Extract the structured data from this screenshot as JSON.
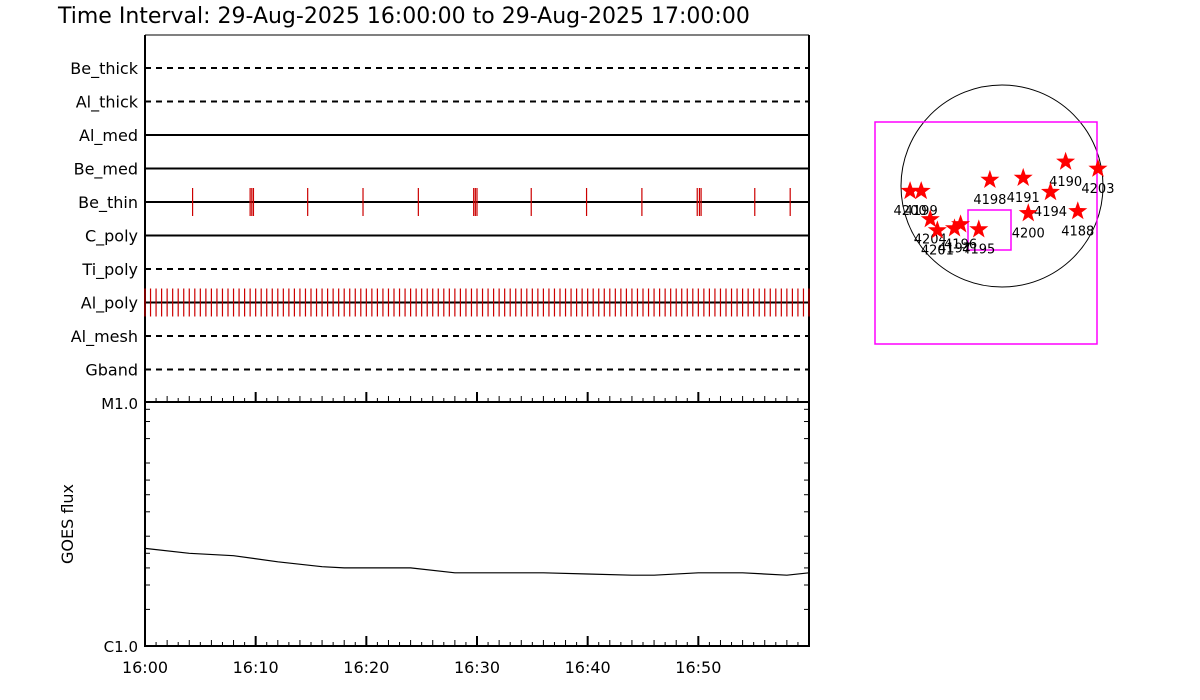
{
  "title": "Time Interval: 29-Aug-2025 16:00:00 to 29-Aug-2025 17:00:00",
  "chart_data": [
    {
      "type": "timeline",
      "x_range": [
        "16:00",
        "17:00"
      ],
      "x_tick_labels": [
        "16:00",
        "16:10",
        "16:20",
        "16:30",
        "16:40",
        "16:50"
      ],
      "rows": [
        {
          "label": "Be_thick",
          "style": "dashed",
          "event_minutes": []
        },
        {
          "label": "Al_thick",
          "style": "dashed",
          "event_minutes": []
        },
        {
          "label": "Al_med",
          "style": "solid",
          "event_minutes": []
        },
        {
          "label": "Be_med",
          "style": "solid",
          "event_minutes": []
        },
        {
          "label": "Be_thin",
          "style": "solid",
          "event_minutes": [
            4.3,
            9.5,
            9.65,
            9.8,
            14.7,
            19.7,
            24.7,
            29.7,
            29.85,
            30.0,
            34.9,
            39.9,
            44.9,
            49.9,
            50.1,
            50.25,
            55.1,
            58.3
          ]
        },
        {
          "label": "C_poly",
          "style": "solid",
          "event_minutes": []
        },
        {
          "label": "Ti_poly",
          "style": "dashed",
          "event_minutes": []
        },
        {
          "label": "Al_poly",
          "style": "solid",
          "event_spacing_minutes": 0.5
        },
        {
          "label": "Al_mesh",
          "style": "dashed",
          "event_minutes": []
        },
        {
          "label": "Gband",
          "style": "dashed",
          "event_minutes": []
        }
      ],
      "event_color": "#cc0000"
    },
    {
      "type": "line",
      "ylabel": "GOES flux",
      "y_scale": "log",
      "y_tick_labels": [
        "M1.0",
        "C1.0"
      ],
      "ylim": [
        "C1.0",
        "M1.0"
      ],
      "x_minutes": [
        0,
        4,
        8,
        12,
        16,
        18,
        20,
        24,
        28,
        30,
        32,
        36,
        40,
        44,
        45,
        46,
        50,
        54,
        58,
        60
      ],
      "y_ratio": [
        0.4,
        0.38,
        0.37,
        0.345,
        0.325,
        0.32,
        0.32,
        0.32,
        0.3,
        0.3,
        0.3,
        0.3,
        0.295,
        0.29,
        0.29,
        0.29,
        0.3,
        0.3,
        0.29,
        0.3
      ]
    },
    {
      "type": "scatter",
      "marker": "star",
      "marker_color": "#ff0000",
      "box_color": "#ff00ff",
      "points": [
        {
          "label": "4200",
          "x": -0.91,
          "y": -0.05
        },
        {
          "label": "4199",
          "x": -0.8,
          "y": -0.05
        },
        {
          "label": "4198",
          "x": -0.12,
          "y": 0.06
        },
        {
          "label": "4191",
          "x": 0.21,
          "y": 0.08
        },
        {
          "label": "4190",
          "x": 0.63,
          "y": 0.24
        },
        {
          "label": "4203",
          "x": 0.95,
          "y": 0.17
        },
        {
          "label": "4194",
          "x": 0.48,
          "y": -0.06
        },
        {
          "label": "4200",
          "x": 0.26,
          "y": -0.27
        },
        {
          "label": "4188",
          "x": 0.75,
          "y": -0.25
        },
        {
          "label": "4204",
          "x": -0.71,
          "y": -0.33
        },
        {
          "label": "4201",
          "x": -0.64,
          "y": -0.44
        },
        {
          "label": "4196",
          "x": -0.41,
          "y": -0.38
        },
        {
          "label": "4197",
          "x": -0.47,
          "y": -0.42
        },
        {
          "label": "4195",
          "x": -0.23,
          "y": -0.43
        }
      ]
    }
  ]
}
